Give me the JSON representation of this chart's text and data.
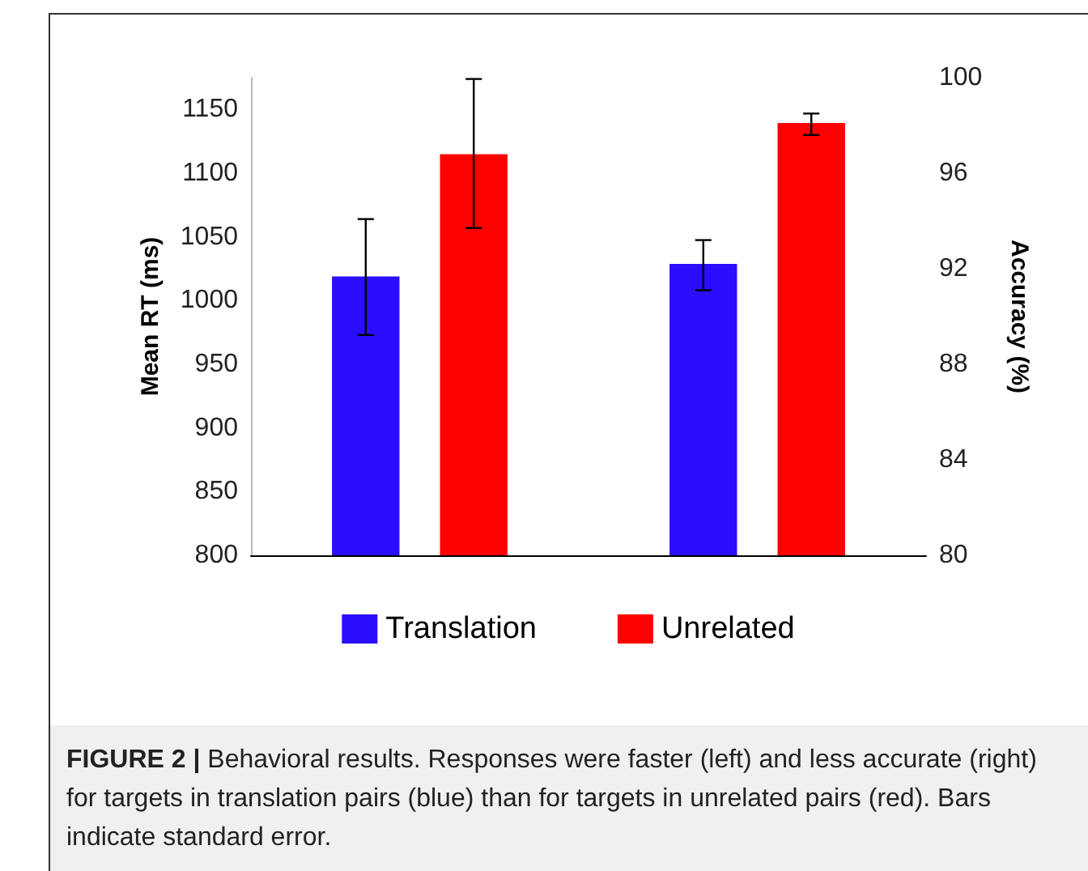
{
  "chart_data": {
    "type": "bar",
    "categories": [
      null,
      null
    ],
    "ylabel": "Mean RT (ms)",
    "y2label": "Accuracy (%)",
    "ylim": [
      800,
      1175
    ],
    "yticks": [
      800,
      850,
      900,
      950,
      1000,
      1050,
      1100,
      1150
    ],
    "y2lim": [
      80,
      100
    ],
    "y2ticks": [
      80,
      84,
      88,
      92,
      96,
      100
    ],
    "series": [
      {
        "name": "Translation",
        "color": "#2a0efd",
        "values": [
          1019,
          null
        ],
        "errors": [
          [
            973,
            1064
          ],
          null
        ]
      },
      {
        "name": "Unrelated",
        "color": "#fd0000",
        "values": [
          1115,
          null
        ],
        "errors": [
          [
            1057,
            1174
          ],
          null
        ]
      },
      {
        "color": "#2a0efd",
        "axis": "y2",
        "values": [
          null,
          92.2
        ],
        "errors": [
          null,
          [
            91.1,
            93.2
          ]
        ]
      },
      {
        "color": "#fd0000",
        "axis": "y2",
        "values": [
          null,
          98.1
        ],
        "errors": [
          null,
          [
            97.6,
            98.5
          ]
        ]
      }
    ],
    "grid": false,
    "legend": "bottom",
    "annotations": [
      "FIGURE 2 |",
      "Behavioral results. Responses were faster (left) and less accurate (right) for targets in translation pairs (blue) than for targets in unrelated pairs (red). Bars indicate standard error."
    ]
  }
}
